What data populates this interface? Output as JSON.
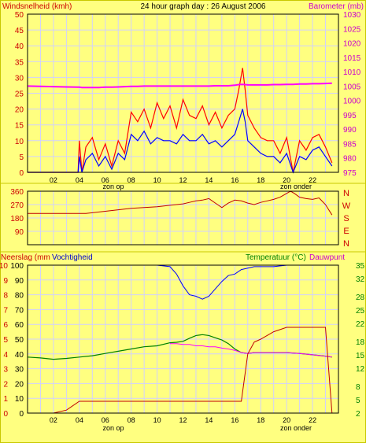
{
  "title": "24 hour graph day : 26 August 2006",
  "x_ticks": [
    "02",
    "04",
    "06",
    "08",
    "10",
    "12",
    "14",
    "16",
    "18",
    "20",
    "22"
  ],
  "sun_labels": {
    "rise": "zon op",
    "set": "zon onder"
  },
  "colors": {
    "background": "#FFFF80",
    "grid": "#D0D0FF",
    "wind_gust": "#FF0000",
    "wind_avg": "#0000FF",
    "barometer": "#FF00FF",
    "direction": "#C00000",
    "rain": "#C00000",
    "humidity": "#0000FF",
    "temperature": "#008000",
    "dewpoint": "#FF00FF",
    "label_red": "#CC0000",
    "label_green": "#008000",
    "label_magenta": "#CC00CC"
  },
  "chart_data": [
    {
      "type": "line",
      "name": "wind",
      "left_label": "Windsnelheid (kmh)",
      "right_label": "Barometer (mb)",
      "ylim": [
        0,
        50
      ],
      "y_ticks": [
        0,
        5,
        10,
        15,
        20,
        25,
        30,
        35,
        40,
        45,
        50
      ],
      "y2lim": [
        975,
        1030
      ],
      "y2_ticks": [
        975,
        980,
        985,
        990,
        995,
        1000,
        1005,
        1010,
        1015,
        1020,
        1025,
        1030
      ],
      "x_hours": [
        0,
        1,
        2,
        3,
        3.9,
        4,
        4.2,
        4.5,
        5,
        5.5,
        6,
        6.5,
        7,
        7.5,
        8,
        8.5,
        9,
        9.5,
        10,
        10.5,
        11,
        11.5,
        12,
        12.5,
        13,
        13.5,
        14,
        14.5,
        15,
        15.5,
        16,
        16.3,
        16.6,
        16.8,
        17,
        17.5,
        18,
        18.5,
        19,
        19.5,
        20,
        20.5,
        21,
        21.5,
        22,
        22.5,
        23,
        23.5
      ],
      "series": [
        {
          "name": "gust",
          "values": [
            0,
            0,
            0,
            0,
            0,
            10,
            0,
            8,
            11,
            4,
            9,
            2,
            10,
            6,
            19,
            16,
            20,
            14,
            22,
            17,
            21,
            14,
            23,
            18,
            17,
            21,
            15,
            19,
            14,
            18,
            20,
            26,
            33,
            26,
            18,
            14,
            11,
            10,
            10,
            6,
            11,
            0,
            10,
            7,
            11,
            12,
            8,
            3
          ]
        },
        {
          "name": "average",
          "values": [
            0,
            0,
            0,
            0,
            0,
            5,
            0,
            4,
            6,
            2,
            5,
            1,
            6,
            4,
            12,
            10,
            13,
            9,
            11,
            10,
            10,
            9,
            12,
            10,
            10,
            12,
            9,
            10,
            8,
            10,
            12,
            16,
            20,
            16,
            10,
            8,
            6,
            5,
            5,
            3,
            6,
            0,
            5,
            4,
            7,
            8,
            5,
            2
          ]
        },
        {
          "name": "barometer",
          "axis": "right",
          "values": [
            1005.0,
            1004.9,
            1004.8,
            1004.7,
            1004.6,
            1004.6,
            1004.5,
            1004.5,
            1004.5,
            1004.5,
            1004.6,
            1004.6,
            1004.7,
            1004.8,
            1004.9,
            1004.9,
            1005.0,
            1005.0,
            1005.0,
            1005.0,
            1005.0,
            1005.0,
            1005.0,
            1005.0,
            1005.0,
            1005.0,
            1005.0,
            1005.1,
            1005.1,
            1005.1,
            1005.3,
            1005.5,
            1005.6,
            1005.5,
            1005.4,
            1005.4,
            1005.4,
            1005.4,
            1005.5,
            1005.5,
            1005.6,
            1005.6,
            1005.7,
            1005.7,
            1005.8,
            1005.8,
            1005.9,
            1006.0
          ]
        }
      ]
    },
    {
      "type": "line",
      "name": "direction",
      "ylim": [
        0,
        360
      ],
      "y_ticks": [
        90,
        180,
        270,
        360
      ],
      "compass_labels": [
        "N",
        "W",
        "S",
        "E",
        "N"
      ],
      "x_hours": [
        0,
        1,
        2,
        3,
        4,
        4.5,
        5,
        6,
        7,
        8,
        9,
        10,
        11,
        12,
        12.5,
        13,
        13.5,
        14,
        14.5,
        15,
        15.5,
        16,
        16.5,
        17,
        17.5,
        18,
        18.5,
        19,
        19.5,
        20,
        20.3,
        20.6,
        21,
        21.5,
        22,
        22.5,
        23,
        23.5
      ],
      "series": [
        {
          "name": "direction",
          "values": [
            210,
            210,
            210,
            210,
            210,
            210,
            215,
            225,
            235,
            245,
            250,
            255,
            265,
            275,
            285,
            295,
            300,
            310,
            280,
            250,
            280,
            300,
            295,
            280,
            270,
            285,
            295,
            305,
            320,
            345,
            360,
            345,
            320,
            310,
            305,
            315,
            270,
            200
          ]
        }
      ]
    },
    {
      "type": "line",
      "name": "humidity_temperature",
      "left_label": "Neerslag (mm",
      "left_label_2": "Vochtigheid",
      "right_label": "Temperatuur (°C)",
      "right_label_2": "Dauwpunt",
      "ylim": [
        0,
        100
      ],
      "y_ticks": [
        0,
        10,
        20,
        30,
        40,
        50,
        60,
        70,
        80,
        90,
        100
      ],
      "rain_ticks": [
        0,
        1,
        2,
        3,
        4,
        5,
        6,
        7,
        8,
        9,
        10
      ],
      "y2lim": [
        2,
        35
      ],
      "y2_ticks": [
        2,
        5,
        8,
        12,
        15,
        18,
        22,
        25,
        28,
        32,
        35
      ],
      "x_hours": [
        0,
        1,
        2,
        3,
        4,
        5,
        6,
        7,
        8,
        9,
        10,
        11,
        11.5,
        12,
        12.5,
        13,
        13.5,
        14,
        14.5,
        15,
        15.5,
        16,
        16.5,
        17,
        17.5,
        18,
        19,
        20,
        21,
        22,
        23,
        23.5
      ],
      "series": [
        {
          "name": "humidity",
          "values": [
            100,
            100,
            100,
            100,
            100,
            100,
            100,
            100,
            100,
            100,
            100,
            99,
            94,
            86,
            80,
            79,
            77,
            79,
            84,
            89,
            93,
            94,
            97,
            98,
            99,
            99,
            99,
            100,
            100,
            100,
            100,
            100
          ]
        },
        {
          "name": "temperature",
          "axis": "right",
          "values": [
            14.5,
            14.3,
            14.0,
            14.2,
            14.5,
            14.8,
            15.3,
            15.8,
            16.3,
            16.8,
            17.0,
            17.7,
            17.8,
            18.0,
            18.7,
            19.3,
            19.5,
            19.3,
            18.8,
            18.3,
            17.5,
            16.3,
            15.5,
            15.3,
            15.5,
            15.5,
            15.5,
            15.5,
            15.3,
            15.0,
            14.7,
            14.5
          ]
        },
        {
          "name": "dewpoint",
          "axis": "right",
          "values": [
            null,
            null,
            null,
            null,
            null,
            null,
            null,
            null,
            null,
            null,
            null,
            17.5,
            17.5,
            17.3,
            17.3,
            17.0,
            17.0,
            16.8,
            16.8,
            16.5,
            16.3,
            16.0,
            15.5,
            15.3,
            15.5,
            15.5,
            15.5,
            15.5,
            15.3,
            15.0,
            14.7,
            14.5
          ]
        },
        {
          "name": "rain",
          "axis": "rain",
          "values": [
            0,
            0,
            0,
            0.2,
            0.8,
            0.8,
            0.8,
            0.8,
            0.8,
            0.8,
            0.8,
            0.8,
            0.8,
            0.8,
            0.8,
            0.8,
            0.8,
            0.8,
            0.8,
            0.8,
            0.8,
            0.8,
            0.8,
            4.0,
            4.8,
            5.0,
            5.5,
            5.8,
            5.8,
            5.8,
            5.8,
            0
          ]
        }
      ]
    }
  ]
}
